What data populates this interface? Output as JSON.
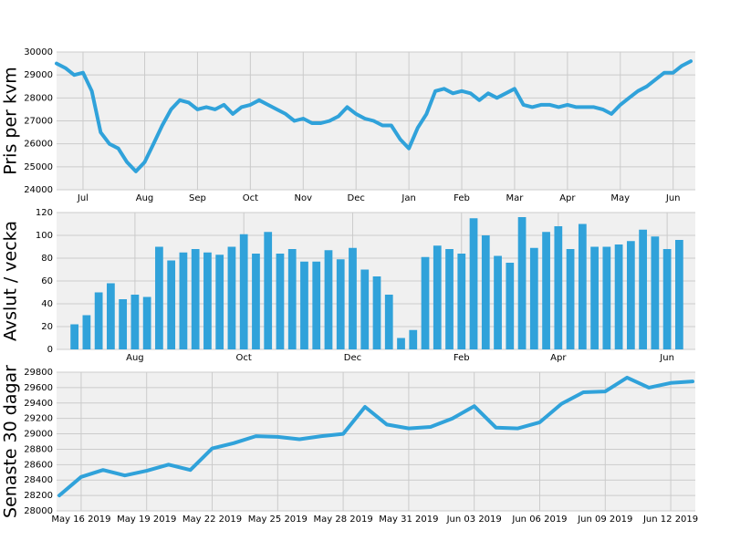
{
  "chart_data": [
    {
      "type": "line",
      "ylabel": "Pris per kvm",
      "color": "#30a2da",
      "grid": true,
      "categories": [
        null,
        null,
        null,
        "Jul",
        null,
        null,
        null,
        null,
        null,
        null,
        "Aug",
        null,
        null,
        null,
        null,
        null,
        "Sep",
        null,
        null,
        null,
        null,
        null,
        "Oct",
        null,
        null,
        null,
        null,
        null,
        "Nov",
        null,
        null,
        null,
        null,
        null,
        "Dec",
        null,
        null,
        null,
        null,
        null,
        "Jan",
        null,
        null,
        null,
        null,
        null,
        "Feb",
        null,
        null,
        null,
        null,
        null,
        "Mar",
        null,
        null,
        null,
        null,
        null,
        "Apr",
        null,
        null,
        null,
        null,
        null,
        "May",
        null,
        null,
        null,
        null,
        null,
        "Jun",
        null,
        null
      ],
      "values": [
        29500,
        29300,
        29000,
        29100,
        28300,
        26500,
        26000,
        25800,
        25200,
        24800,
        25200,
        26000,
        26800,
        27500,
        27900,
        27800,
        27500,
        27600,
        27500,
        27700,
        27300,
        27600,
        27700,
        27900,
        27700,
        27500,
        27300,
        27000,
        27100,
        26900,
        26900,
        27000,
        27200,
        27600,
        27300,
        27100,
        27000,
        26800,
        26800,
        26200,
        25800,
        26700,
        27300,
        28300,
        28400,
        28200,
        28300,
        28200,
        27900,
        28200,
        28000,
        28200,
        28400,
        27700,
        27600,
        27700,
        27700,
        27600,
        27700,
        27600,
        27600,
        27600,
        27500,
        27300,
        27700,
        28000,
        28300,
        28500,
        28800,
        29100,
        29100,
        29400,
        29600
      ],
      "ylim": [
        24000,
        30000
      ],
      "yticks": [
        24000,
        25000,
        26000,
        27000,
        28000,
        29000,
        30000
      ]
    },
    {
      "type": "bar",
      "ylabel": "Avslut / vecka",
      "color": "#30a2da",
      "grid": true,
      "categories": [
        null,
        null,
        null,
        null,
        null,
        "Aug",
        null,
        null,
        null,
        null,
        null,
        null,
        null,
        null,
        "Oct",
        null,
        null,
        null,
        null,
        null,
        null,
        null,
        null,
        "Dec",
        null,
        null,
        null,
        null,
        null,
        null,
        null,
        null,
        "Feb",
        null,
        null,
        null,
        null,
        null,
        null,
        null,
        "Apr",
        null,
        null,
        null,
        null,
        null,
        null,
        null,
        null,
        "Jun",
        null
      ],
      "values": [
        22,
        30,
        50,
        58,
        44,
        48,
        46,
        90,
        78,
        85,
        88,
        85,
        83,
        90,
        101,
        84,
        103,
        84,
        88,
        77,
        77,
        87,
        79,
        89,
        70,
        64,
        48,
        10,
        17,
        81,
        91,
        88,
        84,
        115,
        100,
        82,
        76,
        116,
        89,
        103,
        108,
        88,
        110,
        90,
        90,
        92,
        95,
        105,
        99,
        88,
        96
      ],
      "ylim": [
        0,
        120
      ],
      "yticks": [
        0,
        20,
        40,
        60,
        80,
        100,
        120
      ]
    },
    {
      "type": "line",
      "ylabel": "Senaste 30 dagar",
      "color": "#30a2da",
      "grid": true,
      "categories": [
        null,
        "May 16 2019",
        null,
        null,
        "May 19 2019",
        null,
        null,
        "May 22 2019",
        null,
        null,
        "May 25 2019",
        null,
        null,
        "May 28 2019",
        null,
        null,
        "May 31 2019",
        null,
        null,
        "Jun 03 2019",
        null,
        null,
        "Jun 06 2019",
        null,
        null,
        "Jun 09 2019",
        null,
        null,
        "Jun 12 2019",
        null
      ],
      "values": [
        28200,
        28440,
        28530,
        28460,
        28520,
        28600,
        28530,
        28810,
        28880,
        28970,
        28960,
        28930,
        28970,
        29000,
        29350,
        29120,
        29070,
        29090,
        29200,
        29360,
        29080,
        29070,
        29150,
        29390,
        29540,
        29550,
        29730,
        29600,
        29660,
        29680
      ],
      "ylim": [
        28000,
        29800
      ],
      "yticks": [
        28000,
        28200,
        28400,
        28600,
        28800,
        29000,
        29200,
        29400,
        29600,
        29800
      ]
    }
  ]
}
